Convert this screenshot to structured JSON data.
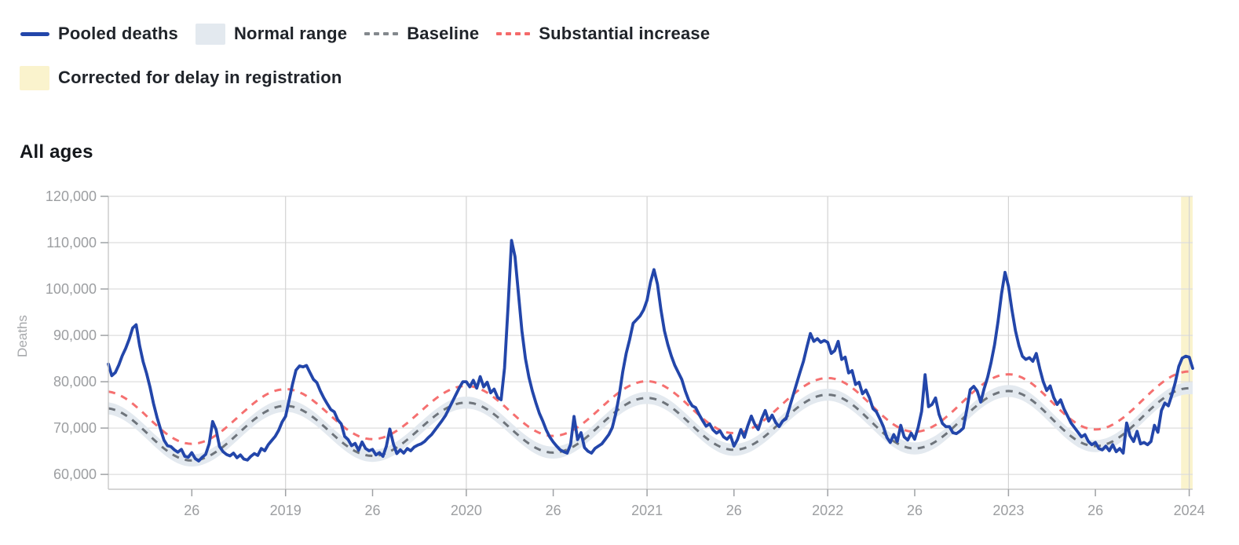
{
  "section_title": "All ages",
  "legend": {
    "items": [
      {
        "id": "pooled-deaths",
        "label": "Pooled deaths",
        "swatch": "line",
        "color": "#2346aa"
      },
      {
        "id": "normal-range",
        "label": "Normal range",
        "swatch": "rect",
        "color": "#e3e9ef"
      },
      {
        "id": "baseline",
        "label": "Baseline",
        "swatch": "dashes",
        "color": "#83888d"
      },
      {
        "id": "substantial-increase",
        "label": "Substantial increase",
        "swatch": "dashes",
        "color": "#f56a6a"
      },
      {
        "id": "corrected",
        "label": "Corrected for delay in registration",
        "swatch": "rect",
        "color": "#faf3cd"
      }
    ]
  },
  "chart_colors": {
    "pooled_deaths": "#2346aa",
    "normal_range_fill": "#e3e9ef",
    "baseline": "#6e747b",
    "substantial_increase": "#f57070",
    "corrected_fill": "#faf3cd",
    "gridline": "#dedede",
    "year_gridline": "#d3d3d3",
    "axis": "#c9c9c9",
    "tick": "#9fa2a5"
  },
  "chart_data": {
    "type": "line",
    "title": "All ages",
    "xlabel": "",
    "ylabel": "Deaths",
    "grid": true,
    "legend_position": "top",
    "ylim": [
      56800,
      120000
    ],
    "x_domain": [
      2018.0192,
      2024.0192
    ],
    "yticks": [
      {
        "v": 60000,
        "label": "60,000"
      },
      {
        "v": 70000,
        "label": "70,000"
      },
      {
        "v": 80000,
        "label": "80,000"
      },
      {
        "v": 90000,
        "label": "90,000"
      },
      {
        "v": 100000,
        "label": "100,000"
      },
      {
        "v": 110000,
        "label": "110,000"
      },
      {
        "v": 120000,
        "label": "120,000"
      }
    ],
    "x_ticks": [
      {
        "t": 2018.481,
        "label": "26",
        "year_line": false
      },
      {
        "t": 2019.0,
        "label": "2019",
        "year_line": true
      },
      {
        "t": 2019.481,
        "label": "26",
        "year_line": false
      },
      {
        "t": 2020.0,
        "label": "2020",
        "year_line": true
      },
      {
        "t": 2020.481,
        "label": "26",
        "year_line": false
      },
      {
        "t": 2021.0,
        "label": "2021",
        "year_line": true
      },
      {
        "t": 2021.481,
        "label": "26",
        "year_line": false
      },
      {
        "t": 2022.0,
        "label": "2022",
        "year_line": true
      },
      {
        "t": 2022.481,
        "label": "26",
        "year_line": false
      },
      {
        "t": 2023.0,
        "label": "2023",
        "year_line": true
      },
      {
        "t": 2023.481,
        "label": "26",
        "year_line": false
      },
      {
        "t": 2024.0,
        "label": "2024",
        "year_line": true
      }
    ],
    "corrected_region": {
      "label": "Corrected for delay in registration",
      "t_start": 2023.955,
      "t_end": 2024.0192
    },
    "series": {
      "baseline": {
        "name": "Baseline",
        "style": "dashed",
        "seasonal_points": [
          [
            2018.0,
            74300
          ],
          [
            2018.48,
            63000
          ],
          [
            2019.0,
            74800
          ],
          [
            2019.48,
            64000
          ],
          [
            2020.0,
            75500
          ],
          [
            2020.48,
            64700
          ],
          [
            2021.0,
            76500
          ],
          [
            2021.48,
            65300
          ],
          [
            2022.0,
            77200
          ],
          [
            2022.48,
            65600
          ],
          [
            2023.0,
            78000
          ],
          [
            2023.48,
            66100
          ],
          [
            2024.0,
            78600
          ],
          [
            2024.2,
            78300
          ]
        ]
      },
      "normal_range": {
        "name": "Normal range",
        "halfwidth": 1300
      },
      "substantial_increase": {
        "name": "Substantial increase",
        "style": "dashed",
        "offset_above_baseline": 3600
      },
      "pooled_deaths": {
        "name": "Pooled deaths",
        "unit": "deaths per week",
        "start_year": 2018,
        "start_week": 2,
        "values": [
          83800,
          81300,
          82000,
          83600,
          85600,
          87200,
          89200,
          91600,
          92300,
          87800,
          84300,
          81800,
          78800,
          75300,
          72300,
          69800,
          67400,
          66200,
          66000,
          65300,
          64800,
          65400,
          63900,
          63700,
          64700,
          63400,
          62900,
          63700,
          64300,
          66600,
          71400,
          69700,
          66000,
          64900,
          64300,
          64000,
          64600,
          63600,
          64200,
          63300,
          63100,
          63900,
          64500,
          64100,
          65600,
          65100,
          66400,
          67300,
          68200,
          69500,
          71300,
          72500,
          76000,
          79500,
          82500,
          83400,
          83200,
          83500,
          82000,
          80500,
          79800,
          78000,
          76500,
          75200,
          74000,
          73500,
          71800,
          70900,
          68200,
          67500,
          66200,
          66700,
          65200,
          67000,
          65600,
          65100,
          65400,
          64200,
          64700,
          63900,
          66100,
          69800,
          66600,
          64500,
          65300,
          64600,
          65600,
          65100,
          65900,
          66300,
          66600,
          67100,
          67900,
          68600,
          69600,
          70600,
          71600,
          72700,
          74200,
          75700,
          77200,
          78700,
          80000,
          80000,
          78900,
          80300,
          78600,
          81100,
          78900,
          79900,
          77600,
          78400,
          76600,
          76100,
          83000,
          96000,
          110500,
          107000,
          99000,
          91000,
          85000,
          81000,
          78000,
          75500,
          73200,
          71500,
          69600,
          68100,
          67000,
          66100,
          65300,
          64900,
          64600,
          66500,
          72500,
          67500,
          69000,
          65800,
          65000,
          64600,
          65600,
          66100,
          66600,
          67600,
          68600,
          70100,
          73100,
          77100,
          82100,
          86100,
          89100,
          92600,
          93400,
          94200,
          95500,
          97600,
          101500,
          104200,
          101000,
          95500,
          91000,
          88000,
          85500,
          83500,
          82000,
          80500,
          78000,
          76000,
          74800,
          74400,
          72900,
          71600,
          70400,
          70900,
          69600,
          68900,
          69400,
          68100,
          67600,
          68400,
          66100,
          67500,
          69700,
          68000,
          70500,
          72600,
          70800,
          69700,
          72000,
          73800,
          71500,
          72800,
          71200,
          70300,
          71500,
          72000,
          74500,
          77000,
          79500,
          82000,
          84400,
          87500,
          90400,
          88700,
          89300,
          88500,
          88900,
          88500,
          86100,
          86700,
          88700,
          84800,
          85300,
          81900,
          82400,
          79400,
          79900,
          77400,
          78200,
          76500,
          74200,
          73500,
          72000,
          70300,
          68000,
          66900,
          68600,
          67100,
          70600,
          68100,
          67400,
          68900,
          67600,
          70100,
          73600,
          81500,
          74600,
          75100,
          76500,
          73000,
          71000,
          70300,
          70300,
          69000,
          68800,
          69300,
          70000,
          74000,
          78300,
          79000,
          78000,
          75600,
          78500,
          81000,
          84200,
          88000,
          93000,
          99000,
          103600,
          100600,
          95500,
          91000,
          87800,
          85500,
          84800,
          85200,
          84400,
          86100,
          82800,
          80000,
          78100,
          79100,
          76600,
          75100,
          76100,
          74100,
          72600,
          71100,
          70100,
          69100,
          68100,
          68600,
          67100,
          66400,
          66900,
          65600,
          65300,
          66100,
          65100,
          66400,
          64900,
          65600,
          64600,
          71100,
          68300,
          67100,
          69300,
          66600,
          66900,
          66400,
          67100,
          70600,
          69100,
          73800,
          75400,
          74800,
          77100,
          79900,
          83300,
          85100,
          85500,
          85300,
          82900
        ]
      }
    }
  }
}
